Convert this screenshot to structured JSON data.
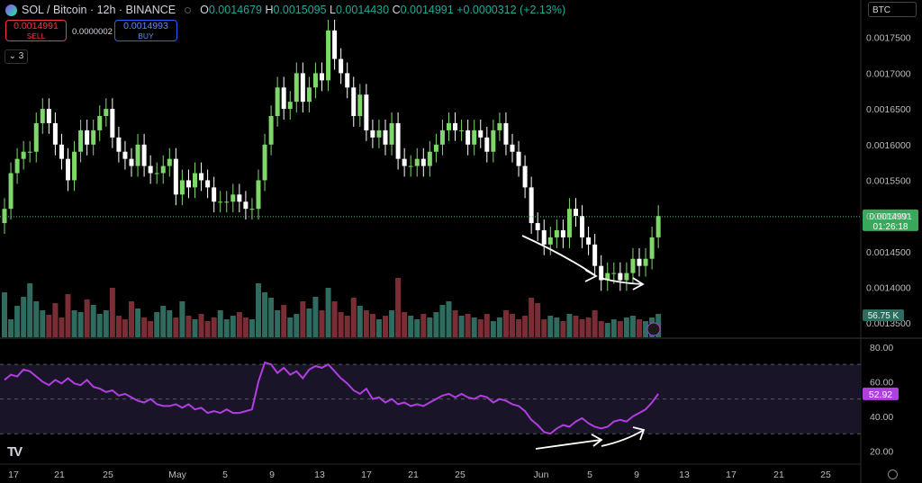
{
  "header": {
    "title": "SOL / Bitcoin · 12h · BINANCE",
    "ohlc": {
      "o_label": "O",
      "o": "0.0014679",
      "h_label": "H",
      "h": "0.0015095",
      "l_label": "L",
      "l": "0.0014430",
      "c_label": "C",
      "c": "0.0014991",
      "change": "+0.0000312 (+2.13%)"
    }
  },
  "trade": {
    "sell_price": "0.0014991",
    "sell_label": "SELL",
    "buy_price": "0.0014993",
    "buy_label": "BUY",
    "spread": "0.0000002"
  },
  "indicators_count": "3",
  "currency": "BTC",
  "colors": {
    "up": "#7fd66a",
    "down": "#ffffff",
    "vol_up": "#2f6b5e",
    "vol_down": "#7a2d35",
    "rsi": "#b03ee0",
    "last_price": "#5ac47f"
  },
  "chart_data": [
    {
      "type": "candlestick",
      "x_ticks": [
        "17",
        "21",
        "25",
        "May",
        "5",
        "9",
        "13",
        "17",
        "21",
        "25",
        "Jun",
        "5",
        "9",
        "13",
        "17",
        "21",
        "25"
      ],
      "y_ticks": [
        "0.0017500",
        "0.0017000",
        "0.0016500",
        "0.0016000",
        "0.0015500",
        "0.0015000",
        "0.0014500",
        "0.0014000",
        "0.0013500"
      ],
      "ylim": [
        0.00133,
        0.00179
      ],
      "last_price": 0.0014991,
      "last_price_label": "0.0014991",
      "countdown": "01:26:18",
      "volume_label": "56.75 K",
      "candles_close": [
        0.00151,
        0.00156,
        0.00158,
        0.00159,
        0.00159,
        0.00163,
        0.00165,
        0.00163,
        0.0016,
        0.00158,
        0.00155,
        0.00159,
        0.00162,
        0.0016,
        0.00162,
        0.00164,
        0.00165,
        0.00161,
        0.00159,
        0.00158,
        0.00157,
        0.0016,
        0.00157,
        0.00156,
        0.00156,
        0.00157,
        0.00158,
        0.00153,
        0.00155,
        0.00154,
        0.00156,
        0.00155,
        0.00154,
        0.00152,
        0.00152,
        0.00152,
        0.00153,
        0.00152,
        0.00151,
        0.00151,
        0.00155,
        0.0016,
        0.00164,
        0.00168,
        0.00165,
        0.00166,
        0.0017,
        0.00166,
        0.00168,
        0.0017,
        0.00169,
        0.00176,
        0.00172,
        0.0017,
        0.00168,
        0.00164,
        0.00167,
        0.00162,
        0.00161,
        0.00162,
        0.0016,
        0.00163,
        0.00158,
        0.00157,
        0.00157,
        0.00158,
        0.00157,
        0.00159,
        0.0016,
        0.00162,
        0.00163,
        0.00162,
        0.00162,
        0.0016,
        0.00162,
        0.00161,
        0.00159,
        0.00162,
        0.00163,
        0.0016,
        0.00159,
        0.00157,
        0.00154,
        0.00149,
        0.00148,
        0.00146,
        0.00147,
        0.00148,
        0.00147,
        0.00151,
        0.0015,
        0.00147,
        0.00146,
        0.00143,
        0.00141,
        0.00142,
        0.00142,
        0.00141,
        0.00142,
        0.00144,
        0.00143,
        0.00144,
        0.00147,
        0.0015
      ],
      "rsi_ticks": [
        "80.00",
        "60.00",
        "40.00",
        "20.00"
      ],
      "rsi_ylim": [
        13,
        83
      ],
      "rsi_upper": 70,
      "rsi_mid": 50,
      "rsi_lower": 30,
      "rsi_last_label": "52.92",
      "rsi_values": [
        61,
        64,
        63,
        67,
        66,
        63,
        60,
        58,
        61,
        59,
        62,
        59,
        58,
        61,
        57,
        56,
        54,
        55,
        52,
        53,
        51,
        49,
        48,
        50,
        47,
        46,
        46,
        47,
        45,
        47,
        44,
        45,
        42,
        43,
        42,
        44,
        42,
        42,
        43,
        44,
        60,
        71,
        70,
        65,
        68,
        64,
        66,
        62,
        67,
        69,
        68,
        70,
        66,
        62,
        59,
        55,
        53,
        56,
        50,
        51,
        48,
        50,
        47,
        48,
        46,
        47,
        46,
        48,
        50,
        52,
        53,
        51,
        53,
        51,
        50,
        52,
        51,
        48,
        50,
        49,
        47,
        46,
        43,
        38,
        35,
        31,
        30,
        33,
        35,
        34,
        37,
        39,
        36,
        34,
        33,
        34,
        37,
        38,
        37,
        40,
        42,
        44,
        48,
        53
      ]
    }
  ]
}
